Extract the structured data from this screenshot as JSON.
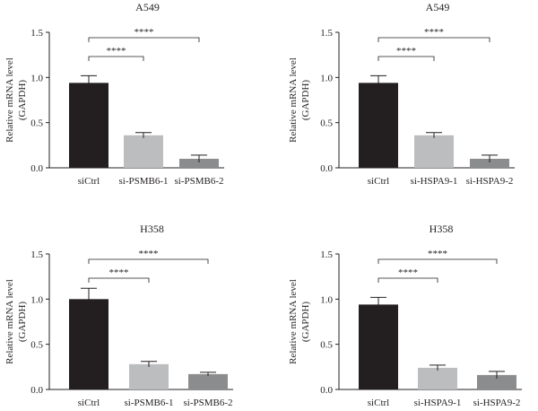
{
  "colors": {
    "bar": [
      "#231f20",
      "#bbbdbf",
      "#8a8c8e"
    ],
    "ink": "#231f20"
  },
  "chart_data": [
    {
      "type": "bar",
      "title": "A549",
      "ylabel": [
        "Relative mRNA level",
        "(GAPDH)"
      ],
      "categories": [
        "siCtrl",
        "si-PSMB6-1",
        "si-PSMB6-2"
      ],
      "values": [
        0.94,
        0.36,
        0.1
      ],
      "errors": [
        0.08,
        0.03,
        0.04
      ],
      "ylim": [
        0,
        1.5
      ],
      "yticks": [
        "0.0",
        "0.5",
        "1.0",
        "1.5"
      ],
      "significance": [
        {
          "from": 0,
          "to": 1,
          "label": "****"
        },
        {
          "from": 0,
          "to": 2,
          "label": "****"
        }
      ]
    },
    {
      "type": "bar",
      "title": "A549",
      "ylabel": [
        "Relative mRNA level",
        "(GAPDH)"
      ],
      "categories": [
        "siCtrl",
        "si-HSPA9-1",
        "si-HSPA9-2"
      ],
      "values": [
        0.94,
        0.36,
        0.1
      ],
      "errors": [
        0.08,
        0.03,
        0.04
      ],
      "ylim": [
        0,
        1.5
      ],
      "yticks": [
        "0.0",
        "0.5",
        "1.0",
        "1.5"
      ],
      "significance": [
        {
          "from": 0,
          "to": 1,
          "label": "****"
        },
        {
          "from": 0,
          "to": 2,
          "label": "****"
        }
      ]
    },
    {
      "type": "bar",
      "title": "H358",
      "ylabel": [
        "Relative mRNA level",
        "(GAPDH)"
      ],
      "categories": [
        "siCtrl",
        "si-PSMB6-1",
        "si-PSMB6-2"
      ],
      "values": [
        1.0,
        0.28,
        0.17
      ],
      "errors": [
        0.12,
        0.03,
        0.02
      ],
      "ylim": [
        0,
        1.5
      ],
      "yticks": [
        "0.0",
        "0.5",
        "1.0",
        "1.5"
      ],
      "significance": [
        {
          "from": 0,
          "to": 1,
          "label": "****"
        },
        {
          "from": 0,
          "to": 2,
          "label": "****"
        }
      ]
    },
    {
      "type": "bar",
      "title": "H358",
      "ylabel": [
        "Relative mRNA level",
        "(GAPDH)"
      ],
      "categories": [
        "siCtrl",
        "si-HSPA9-1",
        "si-HSPA9-2"
      ],
      "values": [
        0.94,
        0.24,
        0.16
      ],
      "errors": [
        0.08,
        0.03,
        0.04
      ],
      "ylim": [
        0,
        1.5
      ],
      "yticks": [
        "0.0",
        "0.5",
        "1.0",
        "1.5"
      ],
      "significance": [
        {
          "from": 0,
          "to": 1,
          "label": "****"
        },
        {
          "from": 0,
          "to": 2,
          "label": "****"
        }
      ]
    }
  ]
}
